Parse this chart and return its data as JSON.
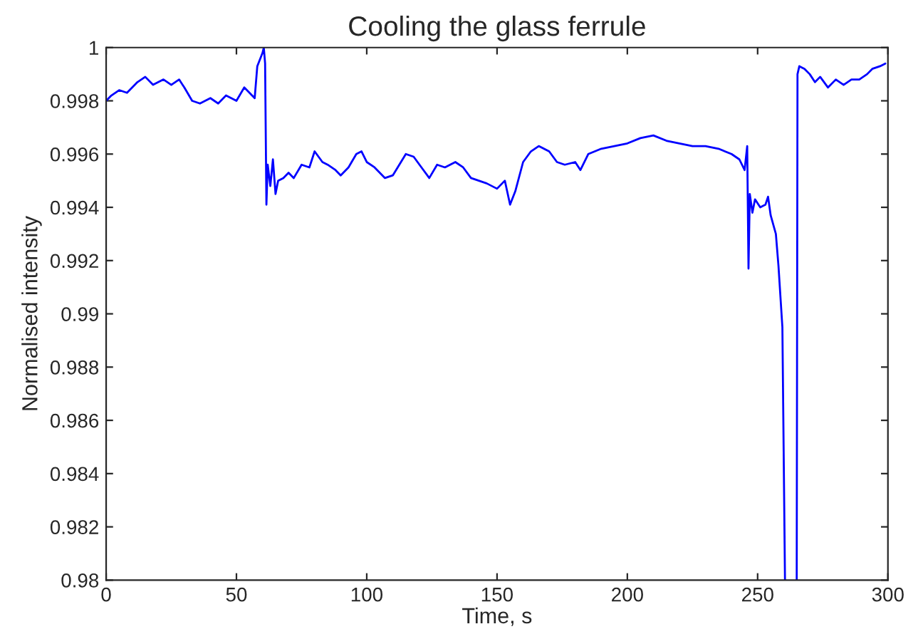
{
  "chart_data": {
    "type": "line",
    "title": "Cooling the glass ferrule",
    "xlabel": "Time, s",
    "ylabel": "Normalised intensity",
    "x": [
      0,
      2,
      5,
      8,
      12,
      15,
      18,
      22,
      25,
      28,
      30,
      33,
      36,
      40,
      43,
      46,
      50,
      53,
      55,
      57,
      58,
      60,
      60.5,
      61,
      61.5,
      62,
      63,
      64,
      65,
      66,
      68,
      70,
      72,
      75,
      78,
      80,
      83,
      85,
      88,
      90,
      93,
      96,
      98,
      100,
      103,
      105,
      107,
      110,
      115,
      118,
      121,
      124,
      127,
      130,
      134,
      137,
      140,
      143,
      146,
      150,
      153,
      155,
      157,
      160,
      163,
      166,
      170,
      173,
      176,
      180,
      182,
      185,
      190,
      195,
      200,
      205,
      210,
      215,
      220,
      225,
      230,
      235,
      240,
      243,
      245,
      246,
      246.5,
      247,
      248,
      249,
      251,
      253,
      254,
      255,
      257,
      258,
      259.5,
      260.5,
      261,
      265,
      265.3,
      266,
      268,
      270,
      272,
      274,
      277,
      280,
      283,
      286,
      289,
      292,
      294,
      297,
      299
    ],
    "series": [
      {
        "color": "#0000ff",
        "values": [
          0.998,
          0.9982,
          0.9984,
          0.9983,
          0.9987,
          0.9989,
          0.9986,
          0.9988,
          0.9986,
          0.9988,
          0.9985,
          0.998,
          0.9979,
          0.9981,
          0.9979,
          0.9982,
          0.998,
          0.9985,
          0.9983,
          0.9981,
          0.9993,
          0.9998,
          1.0,
          0.9994,
          0.9941,
          0.9956,
          0.9948,
          0.9958,
          0.9945,
          0.995,
          0.9951,
          0.9953,
          0.9951,
          0.9956,
          0.9955,
          0.9961,
          0.9957,
          0.9956,
          0.9954,
          0.9952,
          0.9955,
          0.996,
          0.9961,
          0.9957,
          0.9955,
          0.9953,
          0.9951,
          0.9952,
          0.996,
          0.9959,
          0.9955,
          0.9951,
          0.9956,
          0.9955,
          0.9957,
          0.9955,
          0.9951,
          0.995,
          0.9949,
          0.9947,
          0.995,
          0.9941,
          0.9946,
          0.9957,
          0.9961,
          0.9963,
          0.9961,
          0.9957,
          0.9956,
          0.9957,
          0.9954,
          0.996,
          0.9962,
          0.9963,
          0.9964,
          0.9966,
          0.9967,
          0.9965,
          0.9964,
          0.9963,
          0.9963,
          0.9962,
          0.996,
          0.9958,
          0.9954,
          0.9963,
          0.9917,
          0.9945,
          0.9938,
          0.9943,
          0.994,
          0.9941,
          0.9944,
          0.9937,
          0.993,
          0.9918,
          0.9895,
          0.98,
          null,
          0.98,
          0.999,
          0.9993,
          0.9992,
          0.999,
          0.9987,
          0.9989,
          0.9985,
          0.9988,
          0.9986,
          0.9988,
          0.9988,
          0.999,
          0.9992,
          0.9993,
          0.9994
        ]
      }
    ],
    "xlim": [
      0,
      300
    ],
    "xticks": [
      0,
      50,
      100,
      150,
      200,
      250,
      300
    ],
    "ylim": [
      0.98,
      1
    ],
    "yticks": [
      0.98,
      0.982,
      0.984,
      0.986,
      0.988,
      0.99,
      0.992,
      0.994,
      0.996,
      0.998,
      1
    ],
    "grid": false,
    "legend": false,
    "line_style": "solid",
    "marker": "none"
  }
}
